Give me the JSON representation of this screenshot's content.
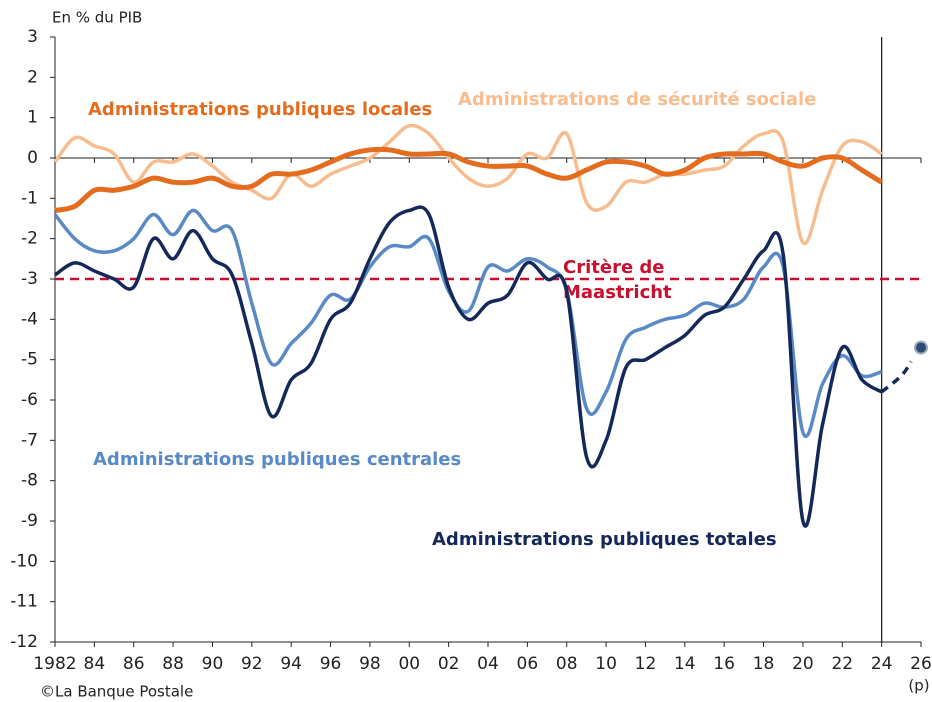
{
  "chart_data": {
    "type": "line",
    "title": "En % du PIB",
    "source": "©La Banque Postale",
    "x": [
      1982,
      1983,
      1984,
      1985,
      1986,
      1987,
      1988,
      1989,
      1990,
      1991,
      1992,
      1993,
      1994,
      1995,
      1996,
      1997,
      1998,
      1999,
      2000,
      2001,
      2002,
      2003,
      2004,
      2005,
      2006,
      2007,
      2008,
      2009,
      2010,
      2011,
      2012,
      2013,
      2014,
      2015,
      2016,
      2017,
      2018,
      2019,
      2020,
      2021,
      2022,
      2023,
      2024
    ],
    "series": [
      {
        "name": "Administrations de sécurité sociale",
        "color": "#f7bd8e",
        "values": [
          -0.1,
          0.5,
          0.3,
          0.1,
          -0.6,
          -0.1,
          -0.1,
          0.1,
          -0.2,
          -0.6,
          -0.8,
          -1.0,
          -0.4,
          -0.7,
          -0.4,
          -0.2,
          0.0,
          0.4,
          0.8,
          0.6,
          0.0,
          -0.5,
          -0.7,
          -0.5,
          0.1,
          0.0,
          0.6,
          -1.1,
          -1.2,
          -0.6,
          -0.6,
          -0.4,
          -0.4,
          -0.3,
          -0.2,
          0.3,
          0.6,
          0.4,
          -2.1,
          -0.8,
          0.3,
          0.4,
          0.1
        ]
      },
      {
        "name": "Administrations publiques locales",
        "color": "#e36c1e",
        "values": [
          -1.3,
          -1.2,
          -0.8,
          -0.8,
          -0.7,
          -0.5,
          -0.6,
          -0.6,
          -0.5,
          -0.7,
          -0.7,
          -0.4,
          -0.4,
          -0.3,
          -0.1,
          0.1,
          0.2,
          0.2,
          0.1,
          0.1,
          0.1,
          -0.1,
          -0.2,
          -0.2,
          -0.2,
          -0.4,
          -0.5,
          -0.3,
          -0.1,
          -0.1,
          -0.2,
          -0.4,
          -0.3,
          0.0,
          0.1,
          0.1,
          0.1,
          -0.1,
          -0.2,
          0.0,
          0.0,
          -0.3,
          -0.6
        ]
      },
      {
        "name": "Administrations publiques centrales",
        "color": "#5a8ac6",
        "values": [
          -1.4,
          -2.0,
          -2.3,
          -2.3,
          -2.0,
          -1.4,
          -1.9,
          -1.3,
          -1.8,
          -1.8,
          -3.6,
          -5.1,
          -4.6,
          -4.1,
          -3.4,
          -3.5,
          -2.7,
          -2.2,
          -2.2,
          -2.0,
          -3.3,
          -3.8,
          -2.7,
          -2.8,
          -2.5,
          -2.7,
          -3.3,
          -6.2,
          -5.8,
          -4.5,
          -4.2,
          -4.0,
          -3.9,
          -3.6,
          -3.7,
          -3.5,
          -2.7,
          -2.7,
          -6.8,
          -5.6,
          -4.9,
          -5.4,
          -5.3
        ]
      },
      {
        "name": "Administrations publiques totales",
        "color": "#15285a",
        "values": [
          -2.9,
          -2.6,
          -2.8,
          -3.0,
          -3.2,
          -2.0,
          -2.5,
          -1.8,
          -2.5,
          -2.9,
          -4.6,
          -6.4,
          -5.5,
          -5.1,
          -4.0,
          -3.6,
          -2.5,
          -1.6,
          -1.3,
          -1.4,
          -3.2,
          -4.0,
          -3.6,
          -3.4,
          -2.6,
          -3.0,
          -3.3,
          -7.4,
          -7.0,
          -5.2,
          -5.0,
          -4.7,
          -4.4,
          -3.9,
          -3.7,
          -3.0,
          -2.3,
          -2.4,
          -9.0,
          -6.6,
          -4.7,
          -5.5,
          -5.8
        ],
        "projection_x": [
          2024,
          2025,
          2026
        ],
        "projection_values": [
          -5.8,
          -5.4,
          -4.7
        ]
      }
    ],
    "reference_line": {
      "value": -3,
      "label": [
        "Critère de",
        "Maastricht"
      ],
      "color": "#c8102e"
    },
    "vline": 2024,
    "xlim": [
      1982,
      2026
    ],
    "xticks": [
      {
        "value": 1982,
        "label": "1982"
      },
      {
        "value": 1984,
        "label": "84"
      },
      {
        "value": 1986,
        "label": "86"
      },
      {
        "value": 1988,
        "label": "88"
      },
      {
        "value": 1990,
        "label": "90"
      },
      {
        "value": 1992,
        "label": "92"
      },
      {
        "value": 1994,
        "label": "94"
      },
      {
        "value": 1996,
        "label": "96"
      },
      {
        "value": 1998,
        "label": "98"
      },
      {
        "value": 2000,
        "label": "00"
      },
      {
        "value": 2002,
        "label": "02"
      },
      {
        "value": 2004,
        "label": "04"
      },
      {
        "value": 2006,
        "label": "06"
      },
      {
        "value": 2008,
        "label": "08"
      },
      {
        "value": 2010,
        "label": "10"
      },
      {
        "value": 2012,
        "label": "12"
      },
      {
        "value": 2014,
        "label": "14"
      },
      {
        "value": 2016,
        "label": "16"
      },
      {
        "value": 2018,
        "label": "18"
      },
      {
        "value": 2020,
        "label": "20"
      },
      {
        "value": 2022,
        "label": "22"
      },
      {
        "value": 2024,
        "label": "24"
      },
      {
        "value": 2026,
        "label": "26"
      }
    ],
    "forecast_note": "(p)",
    "ylim": [
      -12,
      3
    ],
    "yticks": [
      -12,
      -11,
      -10,
      -9,
      -8,
      -7,
      -6,
      -5,
      -4,
      -3,
      -2,
      -1,
      0,
      1,
      2,
      3
    ]
  }
}
